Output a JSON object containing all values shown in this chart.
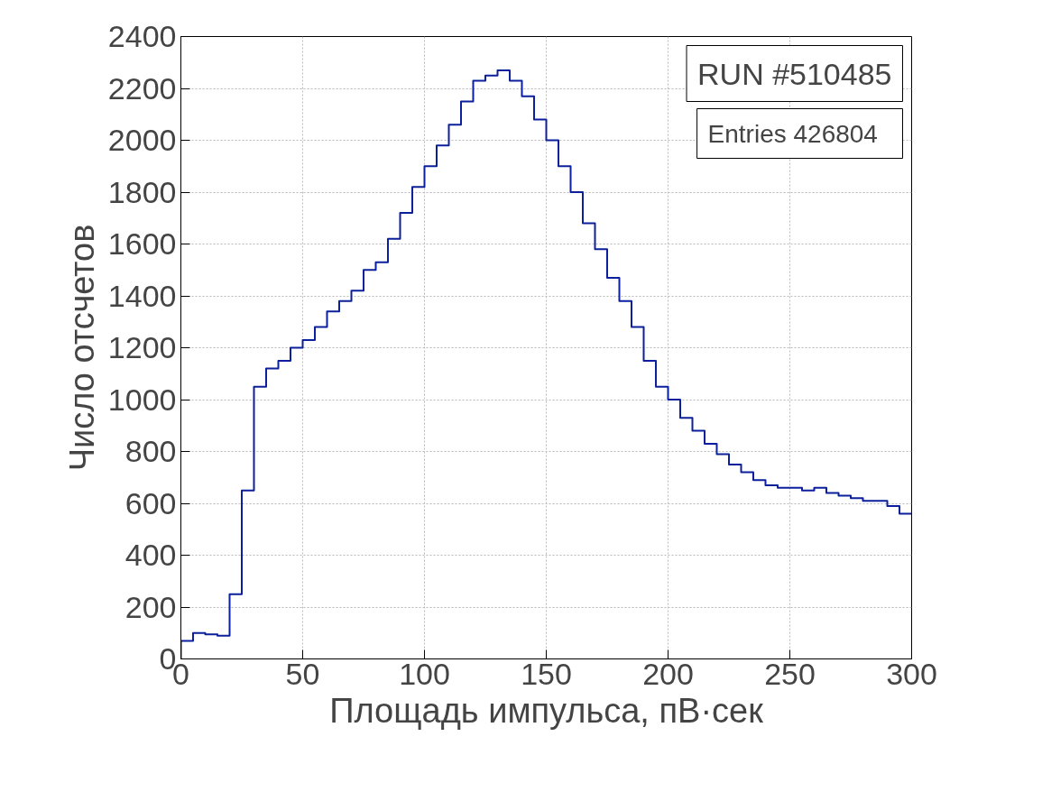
{
  "chart_data": {
    "type": "histogram",
    "xlabel": "Площадь импульса, пВ·сек",
    "ylabel": "Число отсчетов",
    "annotations": [
      "RUN #510485",
      "Entries   426804"
    ],
    "bins": [
      0,
      5,
      10,
      15,
      20,
      25,
      30,
      35,
      40,
      45,
      50,
      55,
      60,
      65,
      70,
      75,
      80,
      85,
      90,
      95,
      100,
      105,
      110,
      115,
      120,
      125,
      130,
      135,
      140,
      145,
      150,
      155,
      160,
      165,
      170,
      175,
      180,
      185,
      190,
      195,
      200,
      205,
      210,
      215,
      220,
      225,
      230,
      235,
      240,
      245,
      250,
      255,
      260,
      265,
      270,
      275,
      280,
      285,
      290,
      295,
      300
    ],
    "values": [
      70,
      100,
      95,
      90,
      250,
      650,
      1050,
      1120,
      1150,
      1200,
      1230,
      1280,
      1340,
      1380,
      1420,
      1500,
      1530,
      1620,
      1720,
      1820,
      1900,
      1980,
      2060,
      2150,
      2230,
      2250,
      2270,
      2230,
      2170,
      2080,
      2000,
      1900,
      1800,
      1680,
      1580,
      1470,
      1380,
      1280,
      1150,
      1050,
      1000,
      930,
      880,
      830,
      790,
      750,
      720,
      690,
      670,
      660,
      660,
      650,
      660,
      640,
      630,
      620,
      610,
      610,
      590,
      560
    ],
    "color": "#0c1f9c",
    "xlim": [
      0,
      300
    ],
    "ylim": [
      0,
      2400
    ],
    "xticks": [
      0,
      50,
      100,
      150,
      200,
      250,
      300
    ],
    "yticks": [
      0,
      200,
      400,
      600,
      800,
      1000,
      1200,
      1400,
      1600,
      1800,
      2000,
      2200,
      2400
    ],
    "grid": true
  }
}
